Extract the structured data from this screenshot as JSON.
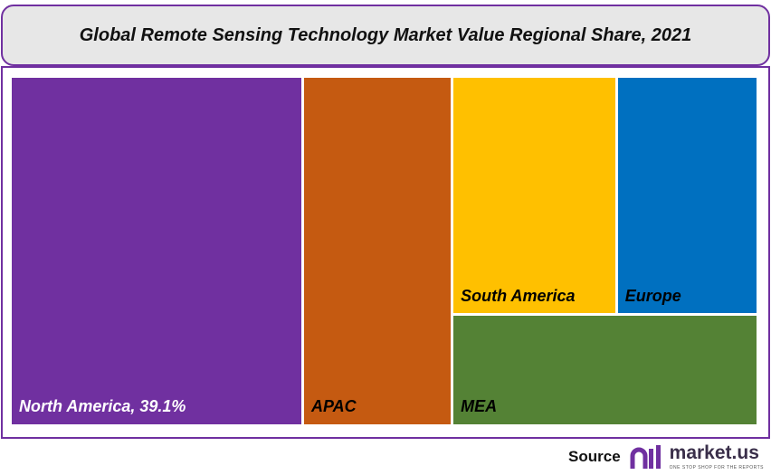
{
  "chart_data": {
    "type": "treemap",
    "title": "Global Remote Sensing Technology Market Value Regional Share, 2021",
    "unit": "%",
    "items": [
      {
        "name": "North America",
        "label": "North America, 39.1%",
        "value": 39.1,
        "color": "#7030a0",
        "text_color": "#ffffff"
      },
      {
        "name": "APAC",
        "label": "APAC",
        "value": 20.0,
        "color": "#c55a11",
        "text_color": "#000000"
      },
      {
        "name": "South America",
        "label": "South America",
        "value": 15.0,
        "color": "#ffc000",
        "text_color": "#000000"
      },
      {
        "name": "Europe",
        "label": "Europe",
        "value": 12.9,
        "color": "#0070c0",
        "text_color": "#000000"
      },
      {
        "name": "MEA",
        "label": "MEA",
        "value": 13.0,
        "color": "#548235",
        "text_color": "#000000"
      }
    ]
  },
  "footer": {
    "source_label": "Source",
    "brand_name": "market.us",
    "brand_tagline": "ONE STOP SHOP FOR THE REPORTS",
    "brand_color": "#7030a0"
  }
}
